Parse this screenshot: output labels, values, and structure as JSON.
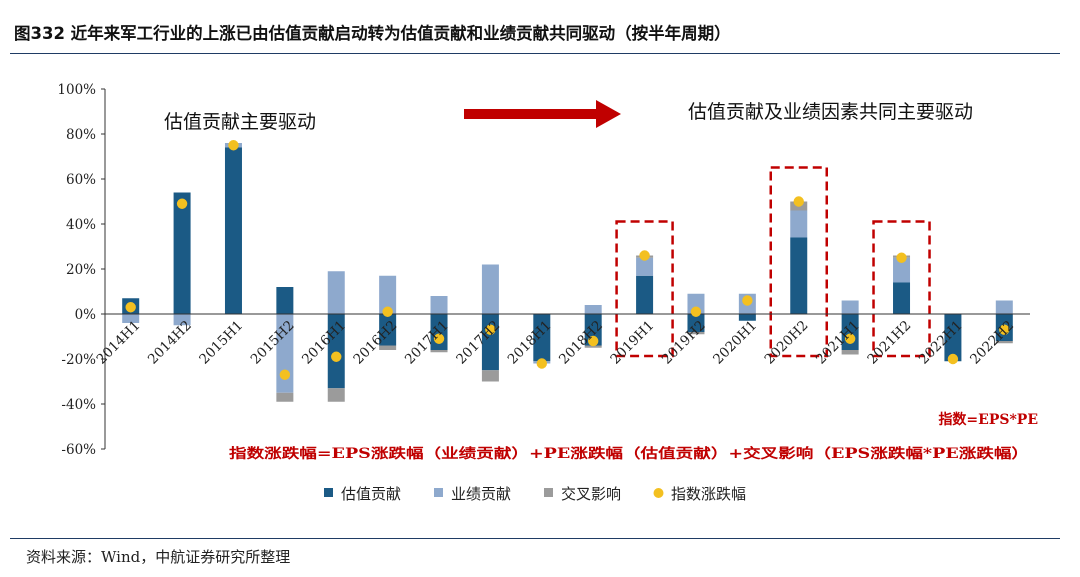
{
  "figure_title": "图332  近年来军工行业的上涨已由估值贡献启动转为估值贡献和业绩贡献共同驱动（按半年周期）",
  "source_note": "资料来源：Wind，中航证券研究所整理",
  "colors": {
    "valuation": "#1b5a85",
    "earnings": "#8ea9cd",
    "cross": "#9b9b9b",
    "index_dot": "#f3c020",
    "annotation": "#c00000",
    "rule": "#1f3b64"
  },
  "chart_data": {
    "type": "bar",
    "stacked": true,
    "title": "",
    "xlabel": "",
    "ylabel": "",
    "ylim": [
      -0.6,
      1.0
    ],
    "yticks": [
      -0.6,
      -0.4,
      -0.2,
      0,
      0.2,
      0.4,
      0.6,
      0.8,
      1.0
    ],
    "ytick_labels": [
      "-60%",
      "-40%",
      "-20%",
      "0%",
      "20%",
      "40%",
      "60%",
      "80%",
      "100%"
    ],
    "grid": false,
    "legend_position": "bottom",
    "categories": [
      "2014H1",
      "2014H2",
      "2015H1",
      "2015H2",
      "2016H1",
      "2016H2",
      "2017H1",
      "2017H2",
      "2018H1",
      "2018H2",
      "2019H1",
      "2019H2",
      "2020H1",
      "2020H2",
      "2021H1",
      "2021H2",
      "2022H1",
      "2022H2"
    ],
    "series": [
      {
        "name": "估值贡献",
        "kind": "bar",
        "values": [
          0.07,
          0.54,
          0.74,
          0.12,
          -0.33,
          -0.14,
          -0.16,
          -0.25,
          -0.21,
          -0.14,
          0.17,
          -0.08,
          -0.03,
          0.34,
          -0.16,
          0.14,
          -0.21,
          -0.12
        ]
      },
      {
        "name": "业绩贡献",
        "kind": "bar",
        "values": [
          -0.04,
          -0.05,
          0.02,
          -0.35,
          0.19,
          0.17,
          0.08,
          0.22,
          -0.01,
          0.04,
          0.08,
          0.09,
          0.09,
          0.12,
          0.06,
          0.11,
          0.0,
          0.06
        ]
      },
      {
        "name": "交叉影响",
        "kind": "bar",
        "values": [
          0.0,
          0.0,
          0.0,
          -0.04,
          -0.06,
          -0.02,
          -0.01,
          -0.05,
          0.0,
          -0.01,
          0.01,
          -0.01,
          0.0,
          0.04,
          -0.02,
          0.01,
          0.0,
          -0.01
        ]
      },
      {
        "name": "指数涨跌幅",
        "kind": "dot",
        "values": [
          0.03,
          0.49,
          0.75,
          -0.27,
          -0.19,
          0.01,
          -0.11,
          -0.07,
          -0.22,
          -0.12,
          0.26,
          0.01,
          0.06,
          0.5,
          -0.11,
          0.25,
          -0.2,
          -0.07
        ]
      }
    ],
    "annotations": {
      "left_text": "估值贡献主要驱动",
      "right_text": "估值贡献及业绩因素共同主要驱动",
      "formula_short": "指数=EPS*PE",
      "formula_long": "指数涨跌幅=EPS涨跌幅（业绩贡献）+PE涨跌幅（估值贡献）+交叉影响（EPS涨跌幅*PE涨跌幅）",
      "highlighted_categories": [
        "2019H1",
        "2020H2",
        "2021H2"
      ]
    }
  }
}
